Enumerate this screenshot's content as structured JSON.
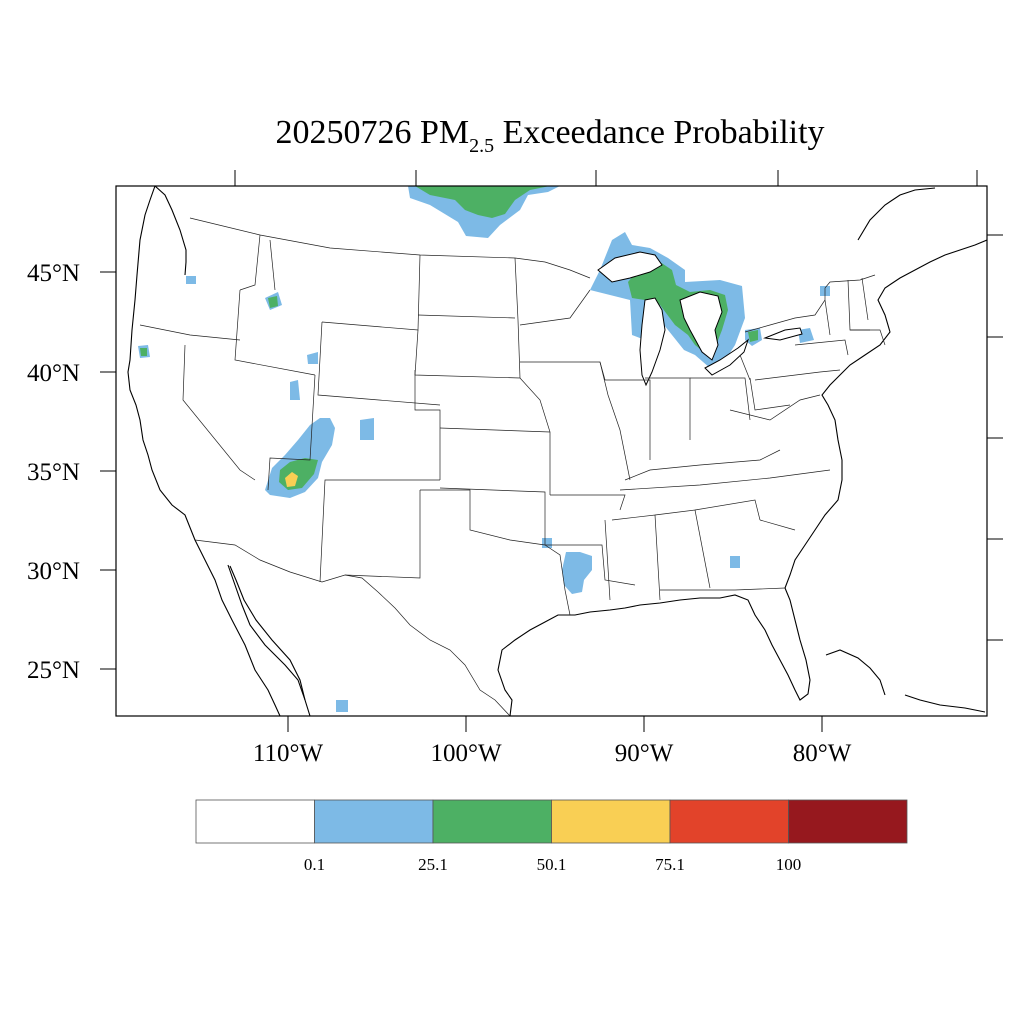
{
  "title": {
    "prefix": "20250726 PM",
    "subscript": "2.5",
    "suffix": " Exceedance Probability"
  },
  "map": {
    "lat_labels": [
      "45°N",
      "40°N",
      "35°N",
      "30°N",
      "25°N"
    ],
    "lon_labels": [
      "110°W",
      "100°W",
      "90°W",
      "80°W"
    ]
  },
  "colorbar": {
    "colors": [
      "#ffffff",
      "#7dbae6",
      "#4db064",
      "#f9cf54",
      "#e2432a",
      "#96181e"
    ],
    "labels": [
      "0.1",
      "25.1",
      "50.1",
      "75.1",
      "100"
    ]
  },
  "colors": {
    "low": "#7dbae6",
    "moderate": "#4db064",
    "high": "#f9cf54"
  }
}
